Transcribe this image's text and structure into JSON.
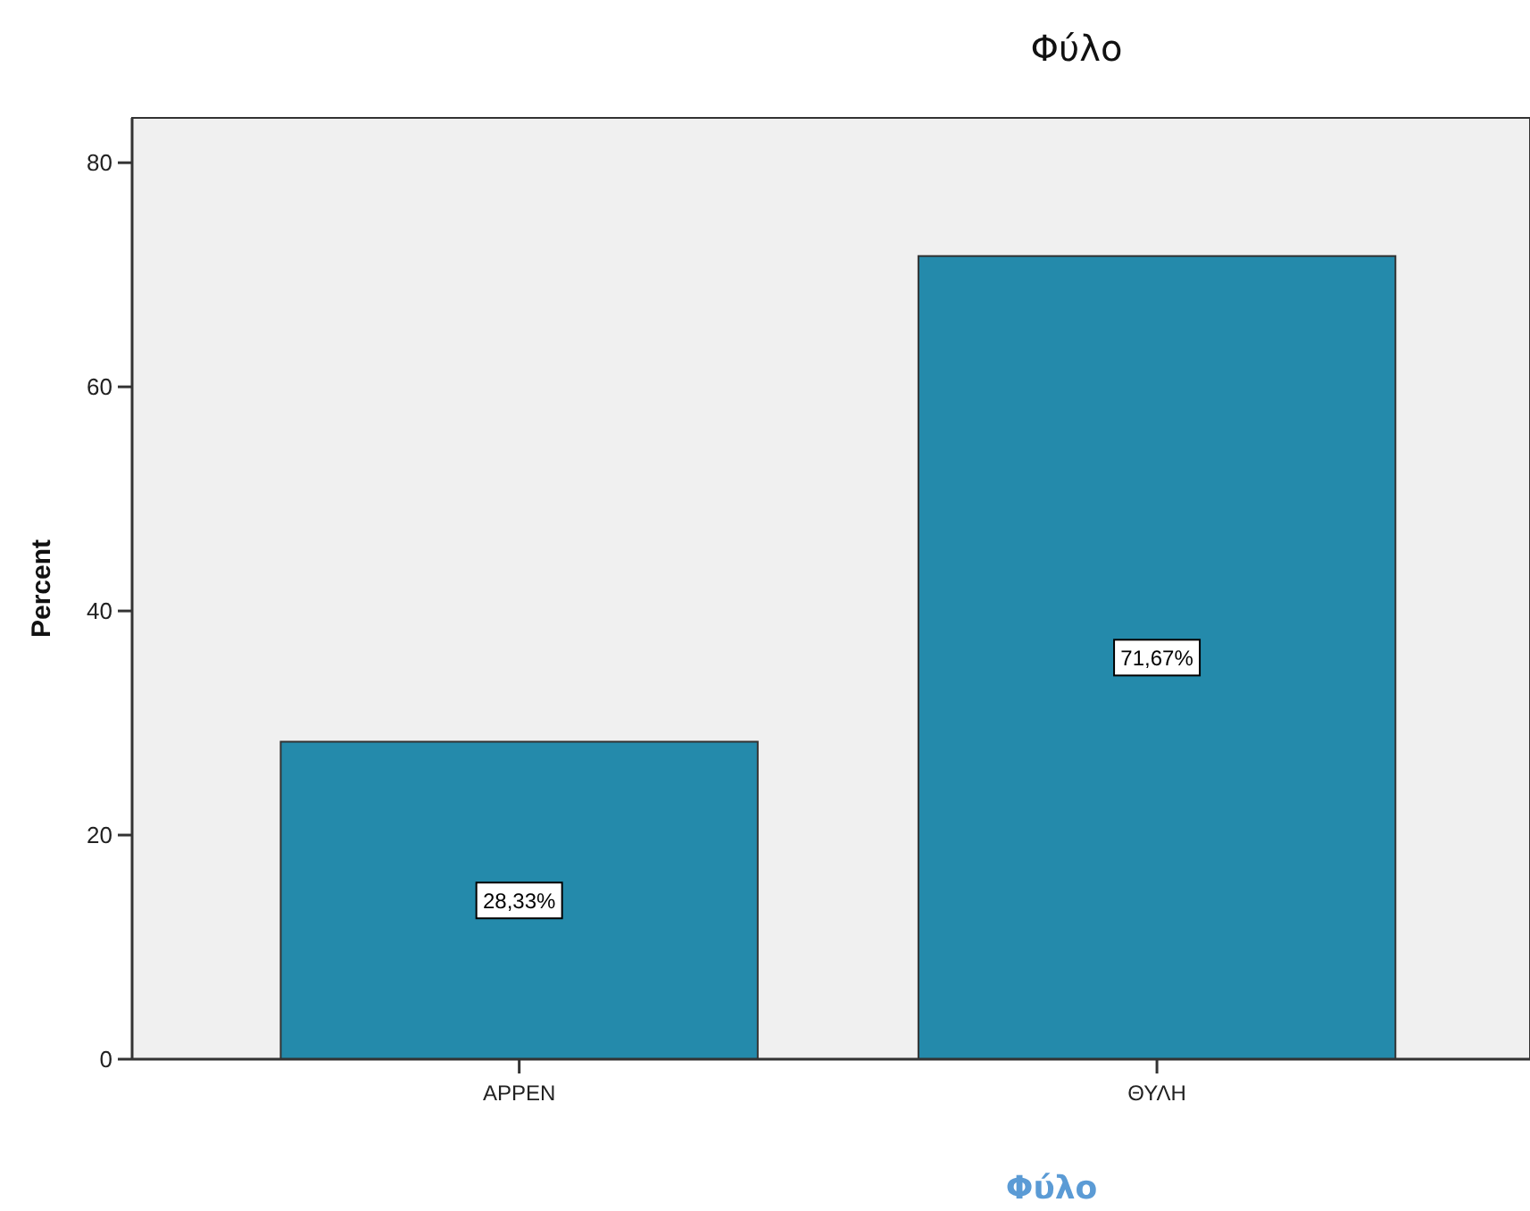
{
  "chart_data": {
    "type": "bar",
    "title": "Φύλο",
    "xlabel": "Φύλο",
    "ylabel": "Percent",
    "categories": [
      "ΑΡΡΕΝ",
      "ΘΥΛΗ"
    ],
    "values": [
      28.33,
      71.67
    ],
    "color": "#248aab",
    "value_labels": [
      "28,33%",
      "71,67%"
    ],
    "ylim": [
      0,
      84
    ],
    "yticks": [
      0,
      20,
      40,
      60,
      80
    ],
    "grid": false
  }
}
